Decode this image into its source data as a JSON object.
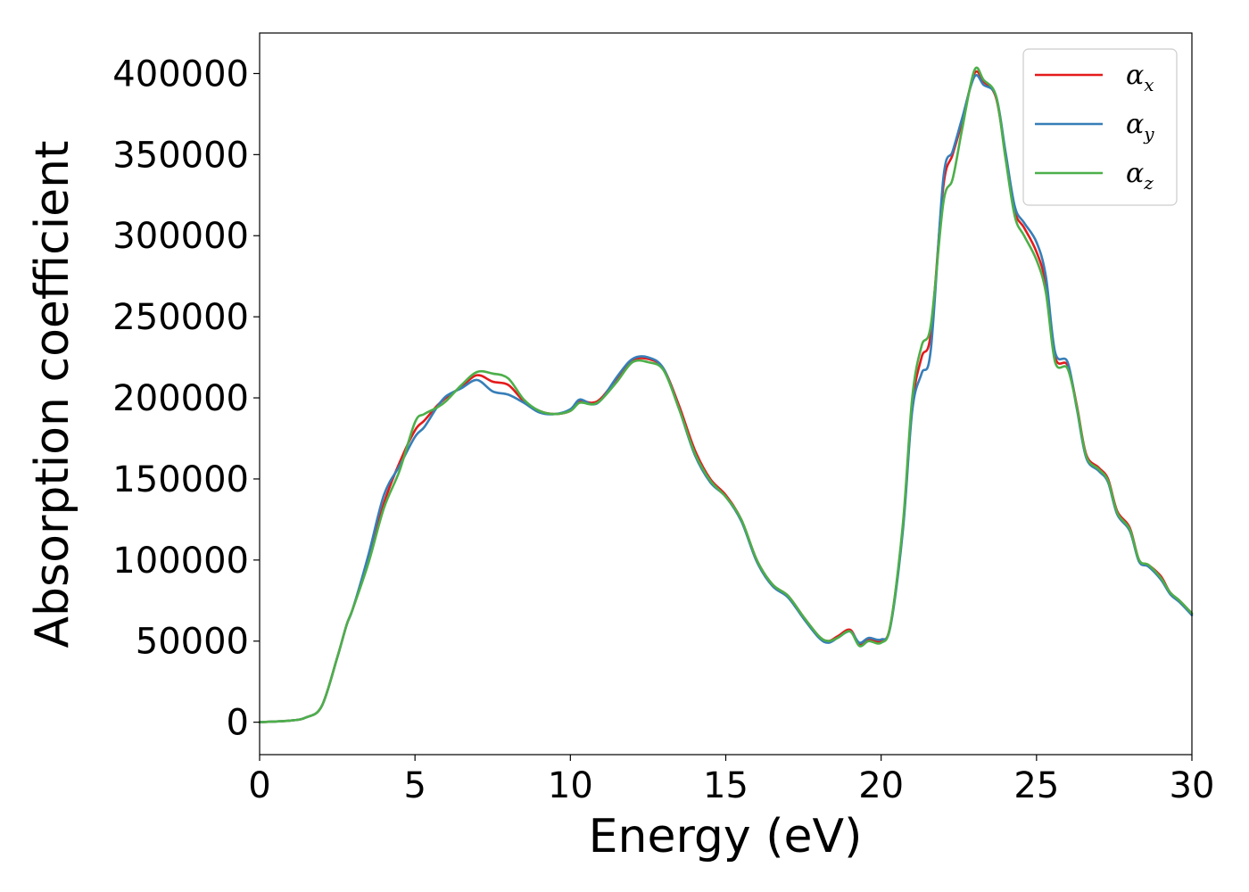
{
  "chart_data": {
    "type": "line",
    "xlabel": "Energy (eV)",
    "ylabel": "Absorption coefficient",
    "xlim": [
      0,
      30
    ],
    "ylim": [
      -20000,
      425000
    ],
    "xticks": [
      0,
      5,
      10,
      15,
      20,
      25,
      30
    ],
    "xtick_labels": [
      "0",
      "5",
      "10",
      "15",
      "20",
      "25",
      "30"
    ],
    "yticks": [
      0,
      50000,
      100000,
      150000,
      200000,
      250000,
      300000,
      350000,
      400000
    ],
    "ytick_labels": [
      "0",
      "50000",
      "100000",
      "150000",
      "200000",
      "250000",
      "300000",
      "350000",
      "400000"
    ],
    "grid": false,
    "legend": "top-right",
    "series": [
      {
        "name": "α_x",
        "label_main": "α",
        "label_sub": "x",
        "color": "#e41a1c",
        "x": [
          0,
          1,
          1.5,
          2,
          2.5,
          2.8,
          3,
          3.5,
          4,
          4.5,
          5,
          5.3,
          5.7,
          6,
          6.5,
          7,
          7.5,
          8,
          8.5,
          9,
          9.5,
          10,
          10.3,
          10.7,
          11,
          11.5,
          12,
          12.5,
          13,
          13.5,
          14,
          14.5,
          15,
          15.5,
          16,
          16.5,
          17,
          17.5,
          18,
          18.3,
          18.6,
          19,
          19.3,
          19.6,
          20,
          20.3,
          20.7,
          21,
          21.3,
          21.6,
          22,
          22.3,
          22.6,
          23,
          23.3,
          23.7,
          24,
          24.3,
          24.6,
          25,
          25.3,
          25.6,
          26,
          26.3,
          26.6,
          27,
          27.3,
          27.6,
          28,
          28.3,
          28.6,
          29,
          29.3,
          29.6,
          30
        ],
        "y": [
          0,
          1000,
          3000,
          10000,
          40000,
          60000,
          70000,
          100000,
          135000,
          160000,
          180000,
          186000,
          195000,
          200000,
          207000,
          214000,
          210000,
          208000,
          198000,
          192000,
          190000,
          192000,
          198000,
          197000,
          200000,
          212000,
          223000,
          224000,
          218000,
          195000,
          168000,
          150000,
          140000,
          125000,
          100000,
          85000,
          78000,
          65000,
          53000,
          50000,
          53000,
          57000,
          48000,
          51000,
          50000,
          60000,
          120000,
          195000,
          225000,
          240000,
          330000,
          350000,
          370000,
          400000,
          395000,
          385000,
          350000,
          315000,
          305000,
          290000,
          270000,
          225000,
          220000,
          195000,
          165000,
          157000,
          150000,
          130000,
          120000,
          100000,
          97000,
          90000,
          80000,
          75000,
          67000
        ]
      },
      {
        "name": "α_y",
        "label_main": "α",
        "label_sub": "y",
        "color": "#377eb8",
        "x": [
          0,
          1,
          1.5,
          2,
          2.5,
          2.8,
          3,
          3.5,
          4,
          4.5,
          5,
          5.3,
          5.7,
          6,
          6.5,
          7,
          7.5,
          8,
          8.5,
          9,
          9.5,
          10,
          10.3,
          10.7,
          11,
          11.5,
          12,
          12.5,
          13,
          13.5,
          14,
          14.5,
          15,
          15.5,
          16,
          16.5,
          17,
          17.5,
          18,
          18.3,
          18.6,
          19,
          19.3,
          19.6,
          20,
          20.3,
          20.7,
          21,
          21.3,
          21.6,
          22,
          22.3,
          22.6,
          23,
          23.3,
          23.7,
          24,
          24.3,
          24.6,
          25,
          25.3,
          25.6,
          26,
          26.3,
          26.6,
          27,
          27.3,
          27.6,
          28,
          28.3,
          28.6,
          29,
          29.3,
          29.6,
          30
        ],
        "y": [
          0,
          1000,
          3000,
          10000,
          40000,
          60000,
          70000,
          103000,
          140000,
          158000,
          176000,
          182000,
          194000,
          201000,
          206000,
          211000,
          204000,
          202000,
          197000,
          191000,
          190000,
          193000,
          199000,
          196000,
          199000,
          213000,
          224000,
          225000,
          218000,
          193000,
          165000,
          148000,
          139000,
          124000,
          99000,
          84000,
          77000,
          64000,
          52000,
          49000,
          52000,
          56000,
          49000,
          52000,
          51000,
          59000,
          118000,
          192000,
          215000,
          230000,
          335000,
          352000,
          372000,
          398000,
          393000,
          386000,
          352000,
          318000,
          308000,
          296000,
          275000,
          228000,
          222000,
          193000,
          163000,
          155000,
          148000,
          128000,
          118000,
          99000,
          96000,
          88000,
          79000,
          74000,
          66000
        ]
      },
      {
        "name": "α_z",
        "label_main": "α",
        "label_sub": "z",
        "color": "#4daf4a",
        "x": [
          0,
          1,
          1.5,
          2,
          2.5,
          2.8,
          3,
          3.5,
          4,
          4.5,
          5,
          5.3,
          5.7,
          6,
          6.5,
          7,
          7.5,
          8,
          8.5,
          9,
          9.5,
          10,
          10.3,
          10.7,
          11,
          11.5,
          12,
          12.5,
          13,
          13.5,
          14,
          14.5,
          15,
          15.5,
          16,
          16.5,
          17,
          17.5,
          18,
          18.3,
          18.6,
          19,
          19.3,
          19.6,
          20,
          20.3,
          20.7,
          21,
          21.3,
          21.6,
          22,
          22.3,
          22.6,
          23,
          23.3,
          23.7,
          24,
          24.3,
          24.6,
          25,
          25.3,
          25.6,
          26,
          26.3,
          26.6,
          27,
          27.3,
          27.6,
          28,
          28.3,
          28.6,
          29,
          29.3,
          29.6,
          30
        ],
        "y": [
          0,
          1000,
          3000,
          10000,
          40000,
          60000,
          70000,
          98000,
          132000,
          155000,
          185000,
          190000,
          194000,
          198000,
          208000,
          216000,
          215000,
          212000,
          199000,
          192000,
          190000,
          192000,
          197000,
          196000,
          199000,
          210000,
          222000,
          222000,
          217000,
          193000,
          166000,
          149000,
          139000,
          125000,
          100000,
          85000,
          78000,
          65000,
          53000,
          50000,
          52000,
          56000,
          47000,
          50000,
          49000,
          60000,
          122000,
          200000,
          232000,
          245000,
          320000,
          335000,
          365000,
          402000,
          396000,
          386000,
          348000,
          312000,
          300000,
          285000,
          265000,
          222000,
          218000,
          194000,
          164000,
          156000,
          149000,
          129000,
          119000,
          100000,
          97000,
          89000,
          80000,
          75000,
          67000
        ]
      }
    ]
  }
}
